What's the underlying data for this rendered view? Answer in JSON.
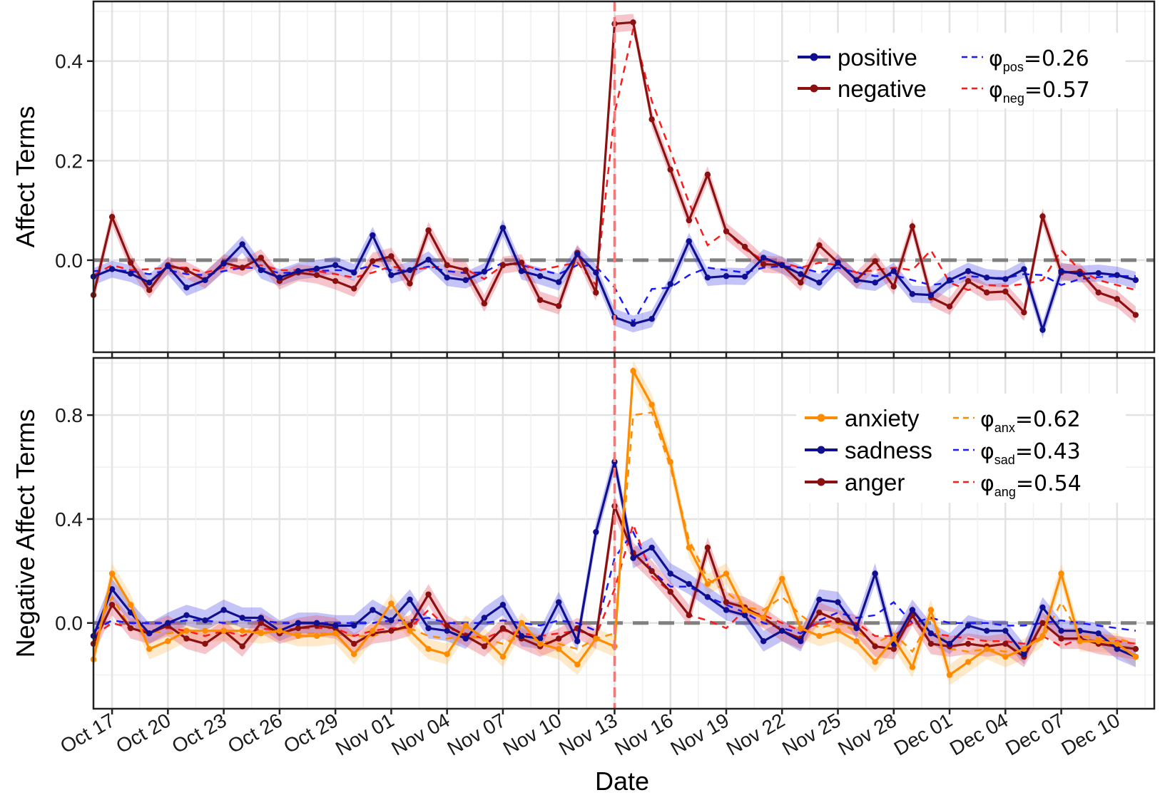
{
  "chart_data": [
    {
      "type": "line",
      "ylabel": "Affect Terms",
      "ylim": [
        -0.185,
        0.52
      ],
      "yticks": [
        {
          "value": 0.4,
          "label": "0.4"
        },
        {
          "value": 0.2,
          "label": "0.2"
        },
        {
          "value": 0.0,
          "label": "0.0"
        }
      ],
      "xlim": [
        "2012-10-16",
        "2012-12-12"
      ],
      "grid": true,
      "reference_hline": 0.0,
      "reference_vline": "2012-11-13",
      "legend_position": "top-right",
      "x": [
        "2012-10-16",
        "2012-10-17",
        "2012-10-18",
        "2012-10-19",
        "2012-10-20",
        "2012-10-21",
        "2012-10-22",
        "2012-10-23",
        "2012-10-24",
        "2012-10-25",
        "2012-10-26",
        "2012-10-27",
        "2012-10-28",
        "2012-10-29",
        "2012-10-30",
        "2012-10-31",
        "2012-11-01",
        "2012-11-02",
        "2012-11-03",
        "2012-11-04",
        "2012-11-05",
        "2012-11-06",
        "2012-11-07",
        "2012-11-08",
        "2012-11-09",
        "2012-11-10",
        "2012-11-11",
        "2012-11-12",
        "2012-11-13",
        "2012-11-14",
        "2012-11-15",
        "2012-11-16",
        "2012-11-17",
        "2012-11-18",
        "2012-11-19",
        "2012-11-20",
        "2012-11-21",
        "2012-11-22",
        "2012-11-23",
        "2012-11-24",
        "2012-11-25",
        "2012-11-26",
        "2012-11-27",
        "2012-11-28",
        "2012-11-29",
        "2012-11-30",
        "2012-12-01",
        "2012-12-02",
        "2012-12-03",
        "2012-12-04",
        "2012-12-05",
        "2012-12-06",
        "2012-12-07",
        "2012-12-08",
        "2012-12-09",
        "2012-12-10",
        "2012-12-11"
      ],
      "series": [
        {
          "name": "positive",
          "color": "#0f0f8f",
          "band_color": "#5555ee",
          "values": [
            -0.033,
            -0.018,
            -0.027,
            -0.045,
            -0.012,
            -0.055,
            -0.04,
            -0.007,
            0.032,
            -0.02,
            -0.035,
            -0.022,
            -0.017,
            -0.01,
            -0.025,
            0.05,
            -0.03,
            -0.02,
            0.001,
            -0.035,
            -0.04,
            -0.023,
            0.065,
            -0.022,
            -0.032,
            -0.044,
            0.012,
            -0.025,
            -0.115,
            -0.128,
            -0.118,
            -0.048,
            0.038,
            -0.035,
            -0.032,
            -0.033,
            0.005,
            -0.01,
            -0.028,
            -0.045,
            -0.005,
            -0.04,
            -0.045,
            -0.022,
            -0.068,
            -0.07,
            -0.04,
            -0.022,
            -0.035,
            -0.038,
            -0.018,
            -0.14,
            -0.022,
            -0.028,
            -0.026,
            -0.03,
            -0.04
          ]
        },
        {
          "name": "negative",
          "color": "#8b1010",
          "band_color": "#e45a6a",
          "values": [
            -0.07,
            0.087,
            -0.005,
            -0.06,
            -0.01,
            -0.02,
            -0.04,
            -0.005,
            -0.015,
            0.005,
            -0.042,
            -0.025,
            -0.03,
            -0.042,
            -0.057,
            -0.002,
            0.008,
            -0.047,
            0.06,
            -0.01,
            -0.02,
            -0.087,
            -0.01,
            -0.005,
            -0.08,
            -0.092,
            0.015,
            -0.065,
            0.475,
            0.478,
            0.283,
            0.182,
            0.08,
            0.172,
            0.058,
            0.027,
            -0.008,
            -0.01,
            -0.045,
            0.03,
            -0.005,
            -0.04,
            -0.002,
            -0.053,
            0.068,
            -0.075,
            -0.093,
            -0.042,
            -0.065,
            -0.063,
            -0.105,
            0.088,
            -0.025,
            -0.023,
            -0.065,
            -0.078,
            -0.11
          ]
        },
        {
          "name": "fitted positive",
          "color": "#1a1aff",
          "dashed": true,
          "values": [
            -0.022,
            -0.02,
            -0.022,
            -0.028,
            -0.02,
            -0.028,
            -0.03,
            -0.022,
            -0.015,
            -0.016,
            -0.026,
            -0.024,
            -0.022,
            -0.02,
            -0.021,
            -0.01,
            -0.02,
            -0.021,
            -0.013,
            -0.022,
            -0.026,
            -0.024,
            -0.005,
            -0.01,
            -0.02,
            -0.028,
            -0.01,
            -0.012,
            -0.055,
            -0.125,
            -0.058,
            -0.055,
            -0.03,
            -0.015,
            -0.02,
            -0.025,
            -0.015,
            -0.012,
            -0.015,
            -0.025,
            -0.015,
            -0.025,
            -0.032,
            -0.03,
            -0.04,
            -0.05,
            -0.045,
            -0.032,
            -0.035,
            -0.036,
            -0.028,
            -0.03,
            -0.05,
            -0.038,
            -0.034,
            -0.032,
            -0.032
          ]
        },
        {
          "name": "fitted negative",
          "color": "#ff1a1a",
          "dashed": true,
          "values": [
            -0.03,
            -0.01,
            -0.02,
            -0.018,
            -0.015,
            -0.015,
            -0.025,
            -0.015,
            -0.015,
            -0.01,
            -0.02,
            -0.02,
            -0.022,
            -0.028,
            -0.035,
            -0.025,
            -0.012,
            -0.02,
            -0.015,
            -0.012,
            -0.018,
            -0.038,
            -0.01,
            -0.008,
            -0.02,
            -0.012,
            -0.005,
            -0.05,
            0.295,
            0.465,
            0.32,
            0.22,
            0.115,
            0.03,
            0.058,
            0.022,
            0.0,
            -0.005,
            -0.015,
            -0.005,
            -0.01,
            -0.025,
            -0.02,
            -0.015,
            -0.02,
            0.02,
            -0.045,
            -0.06,
            -0.05,
            -0.052,
            -0.048,
            -0.04,
            0.02,
            -0.02,
            -0.04,
            -0.05,
            -0.06
          ]
        }
      ],
      "legend": {
        "entries": [
          {
            "series": "positive",
            "label": "positive"
          },
          {
            "series": "negative",
            "label": "negative"
          }
        ],
        "fits": [
          {
            "phi": "φ",
            "sub": "pos",
            "value": "=0.26"
          },
          {
            "phi": "φ",
            "sub": "neg",
            "value": "=0.57"
          }
        ]
      }
    },
    {
      "type": "line",
      "ylabel": "Negative Affect Terms",
      "xlabel": "Date",
      "ylim": [
        -0.33,
        1.02
      ],
      "yticks": [
        {
          "value": 0.8,
          "label": "0.8"
        },
        {
          "value": 0.4,
          "label": "0.4"
        },
        {
          "value": 0.0,
          "label": "0.0"
        }
      ],
      "xlim": [
        "2012-10-16",
        "2012-12-12"
      ],
      "xticks": [
        {
          "value": "2012-10-17",
          "label": "Oct 17"
        },
        {
          "value": "2012-10-20",
          "label": "Oct 20"
        },
        {
          "value": "2012-10-23",
          "label": "Oct 23"
        },
        {
          "value": "2012-10-26",
          "label": "Oct 26"
        },
        {
          "value": "2012-10-29",
          "label": "Oct 29"
        },
        {
          "value": "2012-11-01",
          "label": "Nov 01"
        },
        {
          "value": "2012-11-04",
          "label": "Nov 04"
        },
        {
          "value": "2012-11-07",
          "label": "Nov 07"
        },
        {
          "value": "2012-11-10",
          "label": "Nov 10"
        },
        {
          "value": "2012-11-13",
          "label": "Nov 13"
        },
        {
          "value": "2012-11-16",
          "label": "Nov 16"
        },
        {
          "value": "2012-11-19",
          "label": "Nov 19"
        },
        {
          "value": "2012-11-22",
          "label": "Nov 22"
        },
        {
          "value": "2012-11-25",
          "label": "Nov 25"
        },
        {
          "value": "2012-11-28",
          "label": "Nov 28"
        },
        {
          "value": "2012-12-01",
          "label": "Dec 01"
        },
        {
          "value": "2012-12-04",
          "label": "Dec 04"
        },
        {
          "value": "2012-12-07",
          "label": "Dec 07"
        },
        {
          "value": "2012-12-10",
          "label": "Dec 10"
        }
      ],
      "grid": true,
      "reference_hline": 0.0,
      "reference_vline": "2012-11-13",
      "legend_position": "top-right",
      "x": [
        "2012-10-16",
        "2012-10-17",
        "2012-10-18",
        "2012-10-19",
        "2012-10-20",
        "2012-10-21",
        "2012-10-22",
        "2012-10-23",
        "2012-10-24",
        "2012-10-25",
        "2012-10-26",
        "2012-10-27",
        "2012-10-28",
        "2012-10-29",
        "2012-10-30",
        "2012-10-31",
        "2012-11-01",
        "2012-11-02",
        "2012-11-03",
        "2012-11-04",
        "2012-11-05",
        "2012-11-06",
        "2012-11-07",
        "2012-11-08",
        "2012-11-09",
        "2012-11-10",
        "2012-11-11",
        "2012-11-12",
        "2012-11-13",
        "2012-11-14",
        "2012-11-15",
        "2012-11-16",
        "2012-11-17",
        "2012-11-18",
        "2012-11-19",
        "2012-11-20",
        "2012-11-21",
        "2012-11-22",
        "2012-11-23",
        "2012-11-24",
        "2012-11-25",
        "2012-11-26",
        "2012-11-27",
        "2012-11-28",
        "2012-11-29",
        "2012-11-30",
        "2012-12-01",
        "2012-12-02",
        "2012-12-03",
        "2012-12-04",
        "2012-12-05",
        "2012-12-06",
        "2012-12-07",
        "2012-12-08",
        "2012-12-09",
        "2012-12-10",
        "2012-12-11"
      ],
      "series": [
        {
          "name": "anxiety",
          "color": "#ff8c00",
          "band_color": "#ffc06a",
          "values": [
            -0.14,
            0.19,
            0.07,
            -0.1,
            -0.07,
            -0.03,
            -0.03,
            -0.03,
            -0.03,
            -0.04,
            -0.03,
            -0.05,
            -0.05,
            -0.04,
            -0.12,
            -0.03,
            0.075,
            -0.03,
            -0.1,
            -0.12,
            -0.01,
            -0.06,
            -0.13,
            0.0,
            -0.08,
            -0.1,
            -0.16,
            -0.06,
            -0.09,
            0.97,
            0.84,
            0.62,
            0.29,
            0.15,
            0.19,
            0.05,
            0.02,
            0.17,
            -0.02,
            -0.05,
            -0.03,
            -0.07,
            -0.15,
            -0.06,
            -0.17,
            0.05,
            -0.2,
            -0.15,
            -0.1,
            -0.13,
            -0.1,
            -0.05,
            0.19,
            -0.07,
            -0.07,
            -0.08,
            -0.13
          ]
        },
        {
          "name": "sadness",
          "color": "#0f0f8f",
          "band_color": "#5555ee",
          "values": [
            -0.05,
            0.13,
            0.04,
            -0.04,
            0.0,
            0.03,
            0.01,
            0.05,
            0.02,
            0.02,
            -0.03,
            0.0,
            0.0,
            -0.01,
            -0.01,
            0.05,
            0.01,
            0.09,
            -0.02,
            -0.03,
            -0.06,
            0.02,
            0.07,
            -0.05,
            -0.06,
            0.08,
            -0.07,
            0.35,
            0.62,
            0.25,
            0.29,
            0.19,
            0.15,
            0.1,
            0.05,
            0.03,
            -0.07,
            -0.03,
            -0.07,
            0.09,
            0.08,
            -0.02,
            0.19,
            -0.08,
            0.05,
            -0.04,
            -0.08,
            -0.01,
            -0.03,
            -0.03,
            -0.12,
            0.06,
            -0.03,
            -0.03,
            -0.04,
            -0.1,
            -0.13
          ]
        },
        {
          "name": "anger",
          "color": "#8b1010",
          "band_color": "#e45a6a",
          "values": [
            -0.08,
            0.07,
            -0.02,
            -0.04,
            -0.01,
            -0.06,
            -0.08,
            -0.03,
            -0.09,
            0.0,
            -0.04,
            -0.02,
            -0.01,
            -0.02,
            -0.08,
            -0.04,
            -0.03,
            -0.01,
            0.11,
            -0.01,
            -0.05,
            -0.09,
            -0.02,
            -0.06,
            -0.09,
            -0.06,
            -0.02,
            -0.06,
            0.45,
            0.27,
            0.2,
            0.12,
            0.03,
            0.29,
            0.08,
            0.06,
            0.02,
            -0.03,
            -0.06,
            0.04,
            0.01,
            -0.01,
            -0.09,
            -0.1,
            0.03,
            -0.08,
            -0.09,
            -0.08,
            -0.09,
            -0.08,
            -0.13,
            0.0,
            -0.06,
            -0.06,
            -0.08,
            -0.09,
            -0.1
          ]
        },
        {
          "name": "fitted anxiety",
          "color": "#ff8c00",
          "dashed": true,
          "values": [
            -0.05,
            0.1,
            -0.02,
            -0.03,
            -0.04,
            -0.03,
            -0.03,
            -0.03,
            -0.03,
            -0.03,
            -0.03,
            -0.04,
            -0.04,
            -0.04,
            -0.05,
            -0.05,
            -0.03,
            -0.02,
            -0.05,
            -0.06,
            -0.05,
            -0.06,
            -0.08,
            -0.05,
            -0.07,
            -0.08,
            -0.1,
            -0.06,
            -0.04,
            0.8,
            0.81,
            0.6,
            0.32,
            0.17,
            0.12,
            0.06,
            0.05,
            0.1,
            0.03,
            -0.02,
            0.0,
            -0.03,
            -0.08,
            -0.04,
            -0.11,
            0.02,
            -0.1,
            -0.11,
            -0.1,
            -0.11,
            -0.1,
            -0.06,
            0.08,
            -0.05,
            -0.06,
            -0.06,
            -0.08
          ]
        },
        {
          "name": "fitted sadness",
          "color": "#1a1aff",
          "dashed": true,
          "values": [
            -0.03,
            0.01,
            0.0,
            0.0,
            0.0,
            0.01,
            0.01,
            0.0,
            0.01,
            0.01,
            0.0,
            0.0,
            0.0,
            0.0,
            0.0,
            0.0,
            0.01,
            0.01,
            0.02,
            0.0,
            0.0,
            0.0,
            0.01,
            0.0,
            -0.01,
            0.01,
            0.0,
            -0.03,
            0.25,
            0.35,
            0.2,
            0.14,
            0.14,
            0.1,
            0.07,
            0.04,
            0.0,
            -0.02,
            -0.04,
            0.01,
            0.04,
            0.02,
            0.03,
            0.08,
            0.0,
            0.02,
            0.0,
            0.0,
            0.0,
            -0.01,
            -0.01,
            0.0,
            0.01,
            0.0,
            -0.01,
            -0.02,
            -0.03
          ]
        },
        {
          "name": "fitted anger",
          "color": "#ff1a1a",
          "dashed": true,
          "values": [
            -0.05,
            0.0,
            -0.02,
            -0.03,
            -0.02,
            -0.03,
            -0.05,
            -0.03,
            -0.05,
            -0.02,
            -0.03,
            -0.02,
            -0.02,
            -0.02,
            -0.05,
            -0.03,
            -0.02,
            -0.02,
            0.05,
            -0.02,
            -0.04,
            -0.06,
            -0.03,
            -0.04,
            -0.05,
            -0.04,
            -0.03,
            -0.05,
            0.13,
            0.38,
            0.18,
            0.12,
            0.03,
            0.01,
            -0.02,
            0.05,
            0.03,
            0.0,
            -0.03,
            0.0,
            0.01,
            0.0,
            -0.05,
            -0.05,
            0.0,
            -0.04,
            -0.05,
            -0.06,
            -0.07,
            -0.07,
            -0.08,
            -0.05,
            -0.09,
            -0.06,
            -0.07,
            -0.07,
            -0.08
          ]
        }
      ],
      "legend": {
        "entries": [
          {
            "series": "anxiety",
            "label": "anxiety"
          },
          {
            "series": "sadness",
            "label": "sadness"
          },
          {
            "series": "anger",
            "label": "anger"
          }
        ],
        "fits": [
          {
            "phi": "φ",
            "sub": "anx",
            "value": "=0.62",
            "color": "#ff8c00"
          },
          {
            "phi": "φ",
            "sub": "sad",
            "value": "=0.43",
            "color": "#1a1aff"
          },
          {
            "phi": "φ",
            "sub": "ang",
            "value": "=0.54",
            "color": "#ff1a1a"
          }
        ]
      }
    }
  ]
}
